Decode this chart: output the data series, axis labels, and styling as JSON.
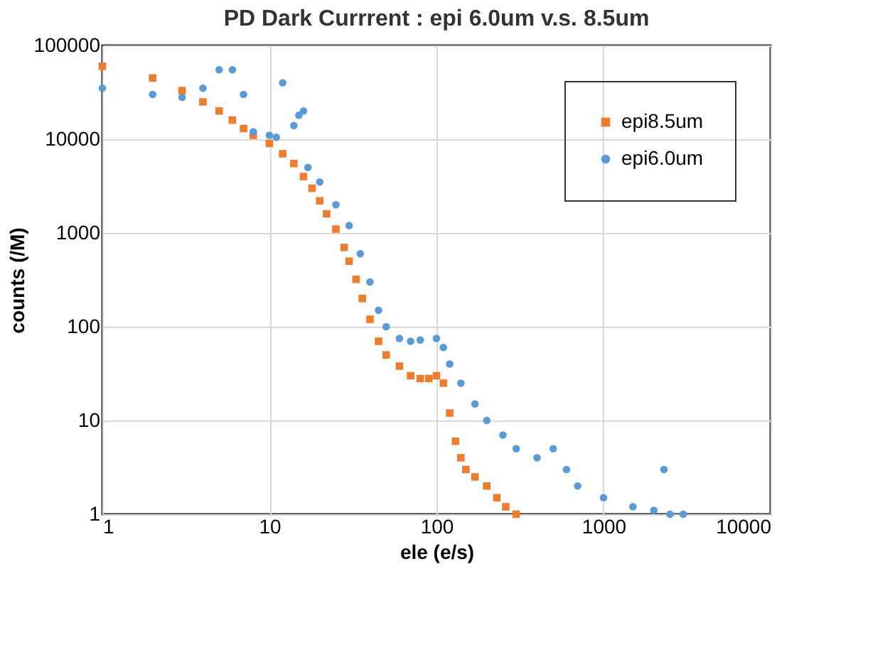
{
  "chart_data": {
    "type": "scatter",
    "title": "PD Dark Currrent : epi 6.0um v.s. 8.5um",
    "xlabel": "ele (e/s)",
    "ylabel": "counts (/M)",
    "log": "xy",
    "grid": true,
    "legend": "top right",
    "xlim": [
      1,
      10000
    ],
    "xticks": [
      1,
      10,
      100,
      1000,
      10000
    ],
    "ylim": [
      1,
      100000
    ],
    "yticks": [
      1,
      10,
      100,
      1000,
      10000,
      100000
    ],
    "series": [
      {
        "name": "epi8.5um",
        "color": "#ed7d31",
        "marker": "square",
        "x": [
          1,
          2,
          3,
          4,
          5,
          6,
          7,
          8,
          10,
          12,
          14,
          16,
          18,
          20,
          22,
          25,
          28,
          30,
          33,
          36,
          40,
          45,
          50,
          60,
          70,
          80,
          90,
          100,
          110,
          120,
          130,
          140,
          150,
          170,
          200,
          230,
          260,
          300
        ],
        "values": [
          60000,
          45000,
          33000,
          25000,
          20000,
          16000,
          13000,
          11000,
          9000,
          7000,
          5500,
          4000,
          3000,
          2200,
          1600,
          1100,
          700,
          500,
          320,
          200,
          120,
          70,
          50,
          38,
          30,
          28,
          28,
          30,
          25,
          12,
          6,
          4,
          3,
          2.5,
          2,
          1.5,
          1.2,
          1
        ]
      },
      {
        "name": "epi6.0um",
        "color": "#5b9bd5",
        "marker": "circle",
        "x": [
          1,
          2,
          3,
          4,
          5,
          6,
          7,
          8,
          10,
          11,
          12,
          14,
          15,
          16,
          17,
          20,
          25,
          30,
          35,
          40,
          45,
          50,
          60,
          70,
          80,
          100,
          110,
          120,
          140,
          170,
          200,
          250,
          300,
          400,
          500,
          600,
          700,
          1000,
          1500,
          2000,
          2300,
          2500,
          3000
        ],
        "values": [
          35000,
          30000,
          28000,
          35000,
          55000,
          55000,
          30000,
          12000,
          11000,
          10500,
          40000,
          14000,
          18000,
          20000,
          5000,
          3500,
          2000,
          1200,
          600,
          300,
          150,
          100,
          75,
          70,
          72,
          75,
          60,
          40,
          25,
          15,
          10,
          7,
          5,
          4,
          5,
          3,
          2,
          1.5,
          1.2,
          1.1,
          3,
          1,
          1
        ]
      }
    ]
  }
}
